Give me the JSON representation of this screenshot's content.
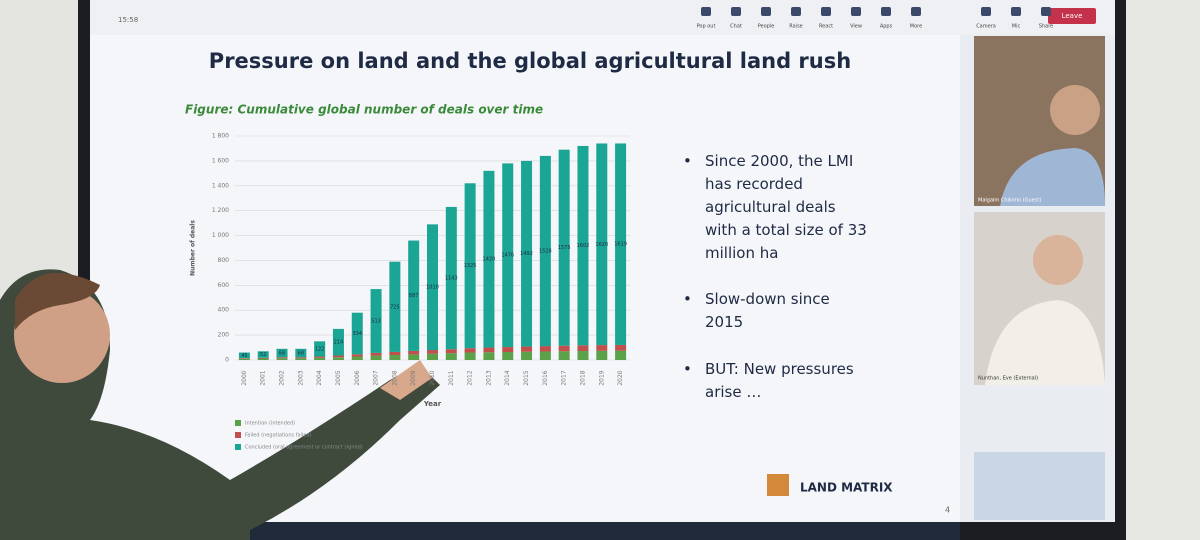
{
  "toolbar": {
    "time": "15:58",
    "buttons": [
      "Pop out",
      "Chat",
      "People",
      "Raise",
      "React",
      "View",
      "Apps",
      "More",
      "Camera",
      "Mic",
      "Share"
    ],
    "leave": "Leave"
  },
  "slide": {
    "title": "Pressure on land and the global agricultural land rush",
    "bullets": [
      "Since 2000, the LMI has recorded agricultural deals with a total size of 33 million ha",
      "Slow-down since 2015",
      "BUT: New pressures arise …"
    ],
    "logo": "LAND MATRIX",
    "page_number": "4"
  },
  "participants": [
    {
      "name": "Malgalm Chikimo (Guest)"
    },
    {
      "name": "Nunthan, Eve (External)"
    }
  ],
  "chart_data": {
    "type": "stacked-bar",
    "title": "Figure: Cumulative global number of deals over time",
    "x_label": "Year",
    "y_label": "Number of deals",
    "categories": [
      "2000",
      "2001",
      "2002",
      "2003",
      "2004",
      "2005",
      "2006",
      "2007",
      "2008",
      "2009",
      "2010",
      "2011",
      "2012",
      "2013",
      "2014",
      "2015",
      "2016",
      "2017",
      "2018",
      "2019",
      "2020"
    ],
    "series": [
      {
        "name": "Intention (intended)",
        "color": "#5aa14a",
        "values": [
          10,
          12,
          14,
          14,
          18,
          22,
          28,
          35,
          40,
          45,
          50,
          55,
          60,
          62,
          64,
          66,
          68,
          70,
          72,
          74,
          75
        ]
      },
      {
        "name": "Failed (negotiations failed)",
        "color": "#c0504d",
        "values": [
          5,
          6,
          8,
          8,
          10,
          14,
          18,
          22,
          25,
          28,
          30,
          32,
          35,
          38,
          40,
          42,
          44,
          45,
          46,
          46,
          46
        ]
      },
      {
        "name": "Concluded (oral agreement or contract signed)",
        "color": "#1aa595",
        "values": [
          45,
          52,
          68,
          68,
          122,
          214,
          334,
          513,
          725,
          887,
          1010,
          1143,
          1325,
          1420,
          1476,
          1492,
          1528,
          1575,
          1602,
          1620,
          1619
        ]
      }
    ],
    "ylim": [
      0,
      1800
    ],
    "yticks": [
      0,
      200,
      400,
      600,
      800,
      {
        "value": 1000,
        "label": "1 000"
      },
      {
        "value": 1200,
        "label": "1 200"
      },
      {
        "value": 1400,
        "label": "1 400"
      },
      {
        "value": 1600,
        "label": "1 600"
      },
      {
        "value": 1800,
        "label": "1 800"
      }
    ],
    "grid": true,
    "legend": "bottom-left"
  }
}
